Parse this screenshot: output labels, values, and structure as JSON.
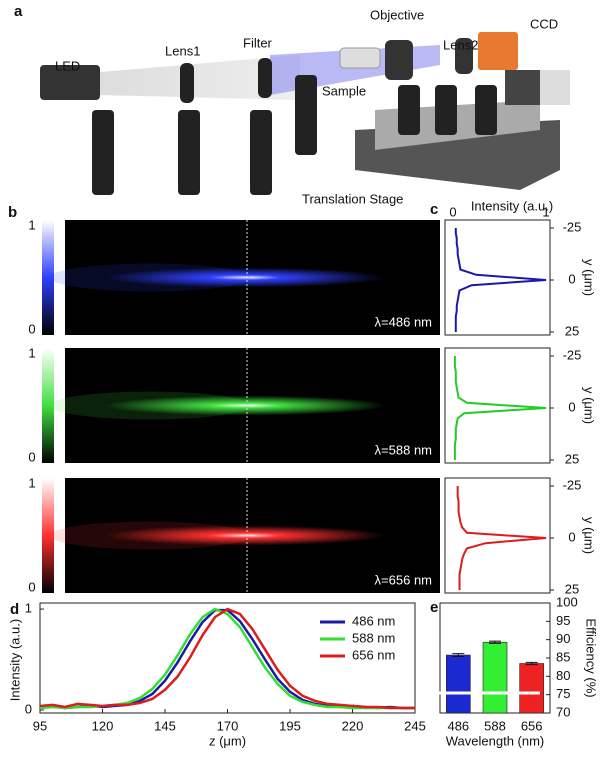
{
  "panel_labels": [
    "a",
    "b",
    "c",
    "d",
    "e"
  ],
  "setup": {
    "labels": [
      "LED",
      "Lens1",
      "Filter",
      "Objective",
      "Lens2",
      "CCD",
      "Sample",
      "Translation Stage"
    ]
  },
  "chart_data": [
    {
      "type": "image",
      "clim": [
        0,
        1
      ],
      "cticks": [
        0,
        1
      ],
      "panels": [
        {
          "label": "λ=486 nm",
          "color": "#3040ff"
        },
        {
          "label": "λ=588 nm",
          "color": "#40e040"
        },
        {
          "label": "λ=656 nm",
          "color": "#ff3030"
        }
      ]
    },
    {
      "type": "profile",
      "xlabel": "Intensity (a.u.)",
      "ylabel": "y (μm)",
      "xlim": [
        0,
        1
      ],
      "xticks": [
        0,
        1
      ],
      "ylim": [
        -25,
        25
      ],
      "yticks": [
        -25,
        0,
        25
      ],
      "y": [
        -25,
        -22.5,
        -20,
        -17.5,
        -15,
        -12.5,
        -10,
        -7.5,
        -5,
        -2.5,
        0,
        2.5,
        5,
        7.5,
        10,
        12.5,
        15,
        17.5,
        20,
        22.5,
        25
      ],
      "series": [
        {
          "color": "#1a1aa6",
          "values": [
            0.03,
            0.03,
            0.04,
            0.04,
            0.05,
            0.05,
            0.06,
            0.07,
            0.08,
            0.25,
            1.0,
            0.2,
            0.07,
            0.06,
            0.05,
            0.04,
            0.04,
            0.03,
            0.03,
            0.03,
            0.03
          ]
        },
        {
          "color": "#22cc22",
          "values": [
            0.02,
            0.02,
            0.02,
            0.03,
            0.03,
            0.03,
            0.04,
            0.05,
            0.06,
            0.15,
            1.0,
            0.12,
            0.05,
            0.04,
            0.03,
            0.03,
            0.03,
            0.02,
            0.02,
            0.02,
            0.02
          ]
        },
        {
          "color": "#dd1c1c",
          "values": [
            0.05,
            0.05,
            0.05,
            0.06,
            0.06,
            0.06,
            0.07,
            0.08,
            0.1,
            0.15,
            1.0,
            0.35,
            0.15,
            0.12,
            0.1,
            0.09,
            0.08,
            0.07,
            0.07,
            0.07,
            0.07
          ]
        }
      ]
    },
    {
      "type": "line",
      "xlabel": "z (μm)",
      "ylabel": "Intensity (a.u.)",
      "xlim": [
        95,
        245
      ],
      "xticks": [
        95,
        120,
        145,
        170,
        195,
        220,
        245
      ],
      "ylim": [
        -0.03,
        1.06
      ],
      "yticks": [
        0,
        1
      ],
      "x": [
        95,
        100,
        105,
        110,
        115,
        120,
        125,
        130,
        135,
        140,
        145,
        150,
        155,
        160,
        165,
        170,
        175,
        180,
        185,
        190,
        195,
        200,
        205,
        210,
        215,
        220,
        225,
        230,
        235,
        240,
        245
      ],
      "series": [
        {
          "name": "486 nm",
          "color": "#1a1aa6",
          "values": [
            0.03,
            0.04,
            0.02,
            0.03,
            0.04,
            0.03,
            0.04,
            0.05,
            0.09,
            0.16,
            0.29,
            0.47,
            0.68,
            0.87,
            0.99,
            0.99,
            0.88,
            0.7,
            0.5,
            0.31,
            0.18,
            0.1,
            0.06,
            0.04,
            0.03,
            0.04,
            0.03,
            0.02,
            0.03,
            0.02,
            0.02
          ]
        },
        {
          "name": "588 nm",
          "color": "#33dd33",
          "values": [
            0.02,
            0.03,
            0.02,
            0.03,
            0.03,
            0.04,
            0.05,
            0.07,
            0.12,
            0.21,
            0.35,
            0.54,
            0.75,
            0.92,
            1.0,
            0.95,
            0.82,
            0.62,
            0.42,
            0.26,
            0.14,
            0.08,
            0.05,
            0.03,
            0.03,
            0.02,
            0.02,
            0.02,
            0.02,
            0.02,
            0.02
          ]
        },
        {
          "name": "656 nm",
          "color": "#dd1c1c",
          "values": [
            0.04,
            0.05,
            0.03,
            0.06,
            0.05,
            0.04,
            0.05,
            0.05,
            0.07,
            0.11,
            0.2,
            0.33,
            0.52,
            0.74,
            0.92,
            1.0,
            0.95,
            0.8,
            0.6,
            0.4,
            0.24,
            0.14,
            0.09,
            0.06,
            0.05,
            0.04,
            0.03,
            0.03,
            0.02,
            0.02,
            0.02
          ]
        }
      ]
    },
    {
      "type": "bar",
      "xlabel": "Wavelength (nm)",
      "ylabel": "Efficiency (%)",
      "categories": [
        "486",
        "588",
        "656"
      ],
      "values": [
        85.8,
        89.3,
        83.5
      ],
      "errors": [
        0.4,
        0.3,
        0.3
      ],
      "colors": [
        "#1a2ad0",
        "#33ee33",
        "#ee2222"
      ],
      "ylim": [
        70,
        100
      ],
      "yticks": [
        70,
        75,
        80,
        85,
        90,
        95,
        100
      ]
    }
  ]
}
